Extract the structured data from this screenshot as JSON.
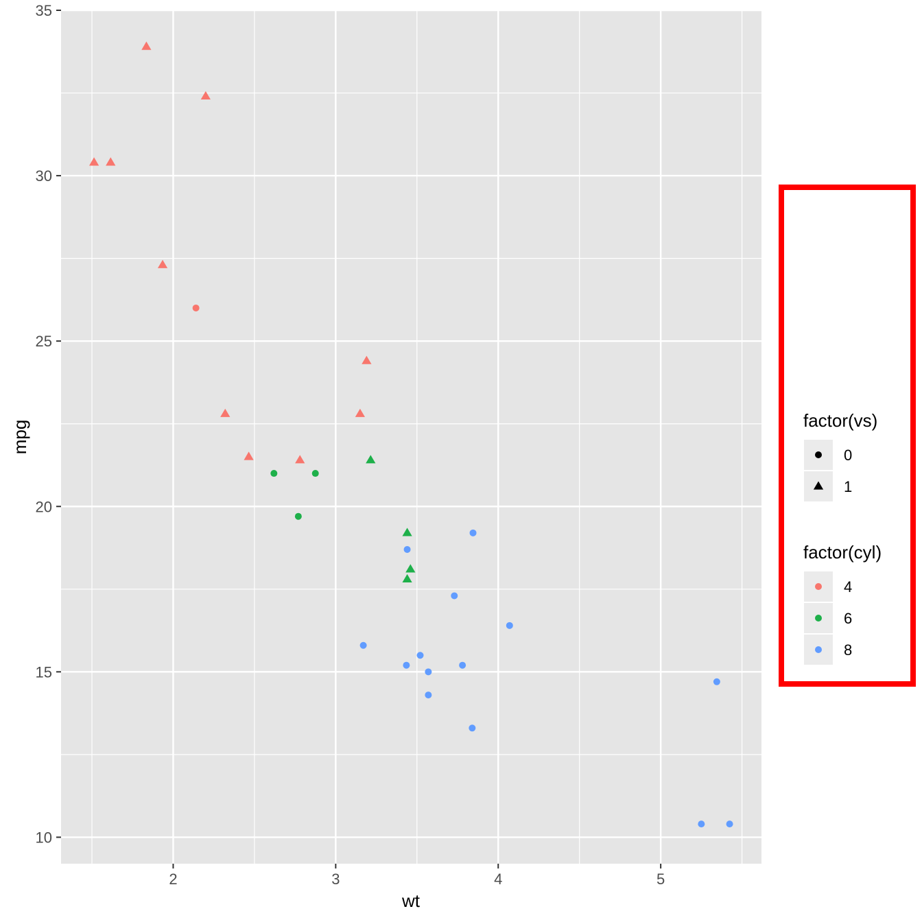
{
  "chart_data": {
    "type": "scatter",
    "xlabel": "wt",
    "ylabel": "mpg",
    "xlim": [
      1.31,
      5.62
    ],
    "ylim": [
      9.2,
      35.0
    ],
    "x_ticks": [
      2,
      3,
      4,
      5
    ],
    "y_ticks": [
      10,
      15,
      20,
      25,
      30,
      35
    ],
    "x_tick_labels": [
      "2",
      "3",
      "4",
      "5"
    ],
    "y_tick_labels": [
      "10",
      "15",
      "20",
      "25",
      "30",
      "35"
    ],
    "grid": true,
    "legend_position": "right",
    "colors": {
      "panel_bg": "#e5e5e5",
      "grid": "#ffffff",
      "cyl_4": "#f8766d",
      "cyl_6": "#1eb04a",
      "cyl_8": "#619cff",
      "highlight_box": "#ff0000"
    },
    "legends": [
      {
        "title": "factor(vs)",
        "entries": [
          {
            "label": "0",
            "shape": "circle",
            "color": "#000000"
          },
          {
            "label": "1",
            "shape": "triangle",
            "color": "#000000"
          }
        ]
      },
      {
        "title": "factor(cyl)",
        "entries": [
          {
            "label": "4",
            "shape": "circle",
            "color": "#f8766d"
          },
          {
            "label": "6",
            "shape": "circle",
            "color": "#1eb04a"
          },
          {
            "label": "8",
            "shape": "circle",
            "color": "#619cff"
          }
        ]
      }
    ],
    "points": [
      {
        "x": 2.62,
        "y": 21.0,
        "cyl": "6",
        "vs": "0"
      },
      {
        "x": 2.875,
        "y": 21.0,
        "cyl": "6",
        "vs": "0"
      },
      {
        "x": 2.32,
        "y": 22.8,
        "cyl": "4",
        "vs": "1"
      },
      {
        "x": 3.215,
        "y": 21.4,
        "cyl": "6",
        "vs": "1"
      },
      {
        "x": 3.44,
        "y": 18.7,
        "cyl": "8",
        "vs": "0"
      },
      {
        "x": 3.46,
        "y": 18.1,
        "cyl": "6",
        "vs": "1"
      },
      {
        "x": 3.57,
        "y": 14.3,
        "cyl": "8",
        "vs": "0"
      },
      {
        "x": 3.19,
        "y": 24.4,
        "cyl": "4",
        "vs": "1"
      },
      {
        "x": 3.15,
        "y": 22.8,
        "cyl": "4",
        "vs": "1"
      },
      {
        "x": 3.44,
        "y": 19.2,
        "cyl": "6",
        "vs": "1"
      },
      {
        "x": 3.44,
        "y": 17.8,
        "cyl": "6",
        "vs": "1"
      },
      {
        "x": 4.07,
        "y": 16.4,
        "cyl": "8",
        "vs": "0"
      },
      {
        "x": 3.73,
        "y": 17.3,
        "cyl": "8",
        "vs": "0"
      },
      {
        "x": 3.78,
        "y": 15.2,
        "cyl": "8",
        "vs": "0"
      },
      {
        "x": 5.25,
        "y": 10.4,
        "cyl": "8",
        "vs": "0"
      },
      {
        "x": 5.424,
        "y": 10.4,
        "cyl": "8",
        "vs": "0"
      },
      {
        "x": 5.345,
        "y": 14.7,
        "cyl": "8",
        "vs": "0"
      },
      {
        "x": 2.2,
        "y": 32.4,
        "cyl": "4",
        "vs": "1"
      },
      {
        "x": 1.615,
        "y": 30.4,
        "cyl": "4",
        "vs": "1"
      },
      {
        "x": 1.835,
        "y": 33.9,
        "cyl": "4",
        "vs": "1"
      },
      {
        "x": 2.465,
        "y": 21.5,
        "cyl": "4",
        "vs": "1"
      },
      {
        "x": 3.52,
        "y": 15.5,
        "cyl": "8",
        "vs": "0"
      },
      {
        "x": 3.435,
        "y": 15.2,
        "cyl": "8",
        "vs": "0"
      },
      {
        "x": 3.84,
        "y": 13.3,
        "cyl": "8",
        "vs": "0"
      },
      {
        "x": 3.845,
        "y": 19.2,
        "cyl": "8",
        "vs": "0"
      },
      {
        "x": 1.935,
        "y": 27.3,
        "cyl": "4",
        "vs": "1"
      },
      {
        "x": 2.14,
        "y": 26.0,
        "cyl": "4",
        "vs": "0"
      },
      {
        "x": 1.513,
        "y": 30.4,
        "cyl": "4",
        "vs": "1"
      },
      {
        "x": 3.17,
        "y": 15.8,
        "cyl": "8",
        "vs": "0"
      },
      {
        "x": 2.77,
        "y": 19.7,
        "cyl": "6",
        "vs": "0"
      },
      {
        "x": 3.57,
        "y": 15.0,
        "cyl": "8",
        "vs": "0"
      },
      {
        "x": 2.78,
        "y": 21.4,
        "cyl": "4",
        "vs": "1"
      }
    ]
  }
}
